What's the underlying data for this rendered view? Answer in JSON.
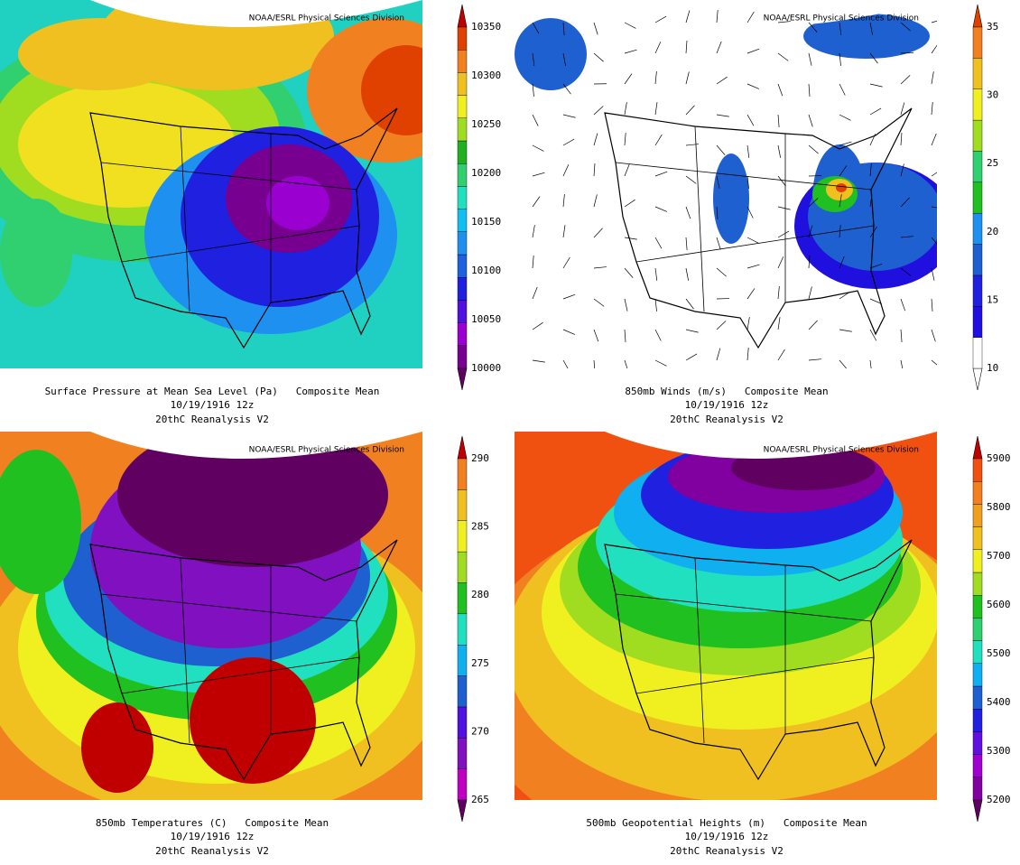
{
  "panels": [
    {
      "credit": "NOAA/ESRL Physical Sciences Division",
      "title": "Surface Pressure at Mean Sea Level (Pa)   Composite Mean",
      "date": "10/19/1916 12z",
      "dataset": "20thC Reanalysis V2",
      "colorbar": {
        "labels": [
          10000,
          10050,
          10100,
          10150,
          10200,
          10250,
          10300,
          10350
        ],
        "colors": [
          "#600060",
          "#780090",
          "#9a00d0",
          "#5010e0",
          "#2020e0",
          "#1e60e0",
          "#1e90f0",
          "#10c0f0",
          "#20e0c0",
          "#30d070",
          "#20b020",
          "#a0dc20",
          "#f0f020",
          "#f0c020",
          "#f08020",
          "#e04000",
          "#c00000"
        ]
      }
    },
    {
      "credit": "NOAA/ESRL Physical Sciences Division",
      "title": "850mb Winds (m/s)   Composite Mean",
      "date": "10/19/1916 12z",
      "dataset": "20thC Reanalysis V2",
      "colorbar": {
        "labels": [
          10,
          15,
          20,
          25,
          30,
          35
        ],
        "colors": [
          "#ffffff",
          "#ffffff",
          "#2010e0",
          "#2020e0",
          "#1e60d0",
          "#1e90f0",
          "#20c020",
          "#30d070",
          "#a0dc20",
          "#f0f020",
          "#f0c020",
          "#f08020",
          "#e04000"
        ]
      }
    },
    {
      "credit": "NOAA/ESRL Physical Sciences Division",
      "title": "850mb Temperatures (C)   Composite Mean",
      "date": "10/19/1916 12z",
      "dataset": "20thC Reanalysis V2",
      "colorbar": {
        "labels": [
          265,
          270,
          275,
          280,
          285,
          290
        ],
        "colors": [
          "#600060",
          "#c000c0",
          "#8010c0",
          "#5010e0",
          "#1e60d0",
          "#10b0f0",
          "#20e0c0",
          "#20c020",
          "#a0dc20",
          "#f0f020",
          "#f0c020",
          "#f08020",
          "#c00000"
        ]
      }
    },
    {
      "credit": "NOAA/ESRL Physical Sciences Division",
      "title": "500mb Geopotential Heights (m)   Composite Mean",
      "date": "10/19/1916 12z",
      "dataset": "20thC Reanalysis V2",
      "colorbar": {
        "labels": [
          5200,
          5300,
          5400,
          5500,
          5600,
          5700,
          5800,
          5900
        ],
        "colors": [
          "#600060",
          "#8000a0",
          "#a000d0",
          "#6010e0",
          "#2020e0",
          "#1e60d0",
          "#10b0f0",
          "#20e0c0",
          "#30d070",
          "#20c020",
          "#a0dc20",
          "#f0f020",
          "#f0c020",
          "#f0a020",
          "#f08020",
          "#f05010",
          "#c00000"
        ]
      }
    }
  ]
}
